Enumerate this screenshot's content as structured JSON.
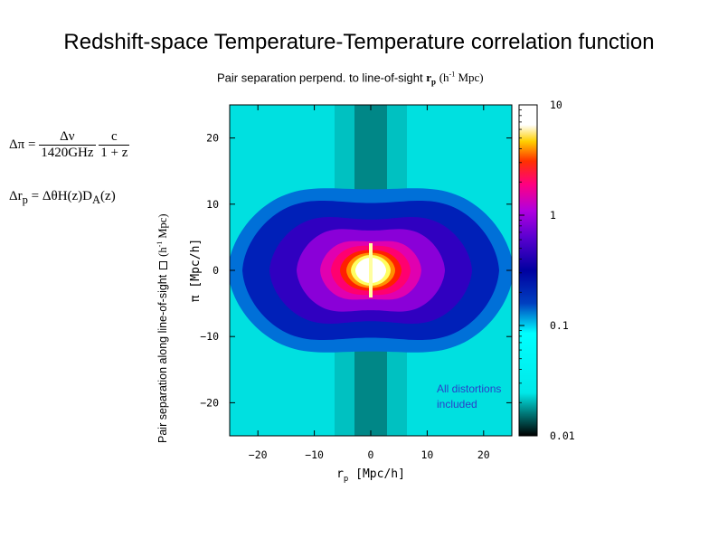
{
  "slide": {
    "title": "Redshift-space Temperature-Temperature correlation function",
    "top_caption": {
      "text": "Pair separation perpend. to line-of-sight",
      "symbol": "r",
      "symbol_sub": "p",
      "unit_open": "(h",
      "unit_sup": "-1",
      "unit_close": " Mpc)"
    },
    "left_caption": {
      "text": "Pair separation along line-of-sight",
      "unit_open": "(h",
      "unit_sup": "-1",
      "unit_close": " Mpc)"
    },
    "formula_1": {
      "lhs": "Δπ =",
      "frac1_num": "Δν",
      "frac1_den": "1420GHz",
      "frac2_num": "c",
      "frac2_den": "1 + z"
    },
    "formula_2": {
      "text": "Δr",
      "sub": "p",
      "rhs": " = ΔθH(z)D",
      "rhs_sub": "A",
      "rhs_end": "(z)"
    }
  },
  "chart_data": {
    "type": "heatmap",
    "title": "",
    "xlabel": "r_p [Mpc/h]",
    "xlabel_main": "r",
    "xlabel_sub": "p",
    "xlabel_unit": " [Mpc/h]",
    "ylabel": "π [Mpc/h]",
    "xlim": [
      -25,
      25
    ],
    "ylim": [
      -25,
      25
    ],
    "x_ticks": [
      -20,
      -10,
      0,
      10,
      20
    ],
    "y_ticks": [
      -20,
      -10,
      0,
      10,
      20
    ],
    "x_tick_labels": [
      "−20",
      "−10",
      "0",
      "10",
      "20"
    ],
    "y_tick_labels": [
      "−20",
      "−10",
      "0",
      "10",
      "20"
    ],
    "colorbar": {
      "scale": "log",
      "range": [
        0.01,
        10
      ],
      "ticks": [
        10,
        1,
        0.1,
        0.01
      ],
      "tick_labels": [
        "10",
        "1",
        "0.1",
        "0.01"
      ],
      "colormap": [
        "#000000",
        "#00ffff",
        "#0000a0",
        "#7000d0",
        "#ff0080",
        "#ff4000",
        "#ffff00",
        "#ffffff"
      ]
    },
    "annotation": [
      "All distortions",
      "included"
    ],
    "grid": false
  }
}
